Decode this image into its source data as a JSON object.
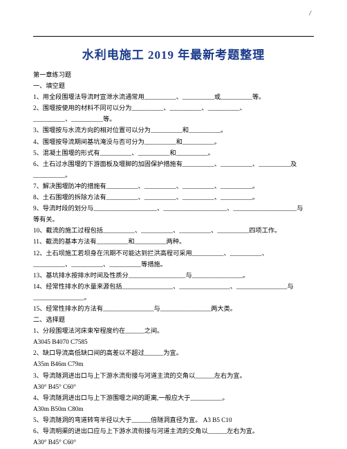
{
  "header_mark": "/",
  "title": "水利电施工 2019 年最新考题整理",
  "lines": [
    "第一章练习题",
    "一、填空题",
    "1、用全段围堰法导流时宣泄水流通常用__________、__________或__________等。",
    "2、围堰按使用的材料不同可以分为__________、__________、__________、",
    "__________、__________等。",
    "3、围堰按与水流方向的相对位置可以分为__________和__________。",
    "4、围堰按导流期间基坑淹没与否可分为__________和__________。",
    "5、混凝土围堰的形式有__________、__________和__________。",
    "6、土石过水围堰的下游面板及堰脚的加固保护措施有__________、__________、__________及",
    "__________。",
    "7、解决围堰防冲的措施有__________、__________、__________、__________。",
    "8、土石围堰的拆除方法有__________、__________、__________、__________。",
    "9、导流时段的划分与____________________、____________________、____________________与",
    "等有关。",
    "10、截流的施工过程包括__________、__________、__________、__________四项工作。",
    "11、截流的基本方法有__________和__________两种。",
    "12、土石坝施工若坝身在汛期不可能达到拦洪高程可采用__________、__________、",
    "__________、__________、__________等措施。",
    "13、基坑排水按排水时间及性质分__________________与________________。",
    "14、经常性排水的水量来源包括________________、________________、________________与",
    "________________。",
    "15、经常性排水的方法有________________与________________两大类。",
    "二、选择题",
    "1、分段围堰法河床束窄程度约在______之间。",
    "A3045 B4070 C7585",
    "2、缺口导流高低缺口间的高差以不超过______为宜。",
    "A35m B46m C79m",
    "3、导流隧洞进出口与上下游水流衔接与河道主流的交角以______左右为宜。",
    "A30° B45° C60°",
    "4、导流隧洞进出口与上下游围堰之间的距离,一般应大于__________。",
    "A30m B50m C80m",
    "5、导流隧洞的弯道转弯半径以大于______倍隧洞直径为宜。    A3 B5 C10",
    "6、导流明渠的进出口应与上下游水流衔接与河道主流的交角以______左右为宜。",
    "A30° B45° C60°"
  ],
  "colors": {
    "title_color": "#1a3a8a",
    "text_color": "#000000",
    "page_bg": "#ffffff"
  },
  "typography": {
    "title_fontsize": 17,
    "body_fontsize": 9.2,
    "line_height": 1.75
  }
}
